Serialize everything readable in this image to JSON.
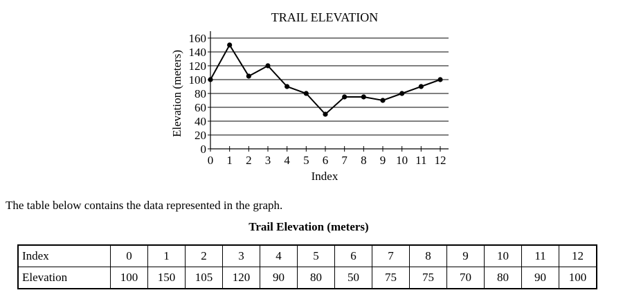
{
  "chart_data": {
    "type": "line",
    "title": "TRAIL ELEVATION",
    "xlabel": "Index",
    "ylabel": "Elevation (meters)",
    "x": [
      0,
      1,
      2,
      3,
      4,
      5,
      6,
      7,
      8,
      9,
      10,
      11,
      12
    ],
    "y": [
      100,
      150,
      105,
      120,
      90,
      80,
      50,
      75,
      75,
      70,
      80,
      90,
      100
    ],
    "xticks": [
      "0",
      "1",
      "2",
      "3",
      "4",
      "5",
      "6",
      "7",
      "8",
      "9",
      "10",
      "11",
      "12"
    ],
    "yticks": [
      "0",
      "20",
      "40",
      "60",
      "80",
      "100",
      "120",
      "140",
      "160"
    ],
    "xlim": [
      0,
      12
    ],
    "ylim": [
      0,
      160
    ],
    "grid": "horizontal",
    "legend": "none"
  },
  "text": {
    "intro": "The table below contains the data represented in the graph.",
    "table_title": "Trail Elevation (meters)"
  },
  "table": {
    "row_headers": [
      "Index",
      "Elevation"
    ],
    "index_cells": [
      "0",
      "1",
      "2",
      "3",
      "4",
      "5",
      "6",
      "7",
      "8",
      "9",
      "10",
      "11",
      "12"
    ],
    "elevation_cells": [
      "100",
      "150",
      "105",
      "120",
      "90",
      "80",
      "50",
      "75",
      "75",
      "70",
      "80",
      "90",
      "100"
    ]
  }
}
